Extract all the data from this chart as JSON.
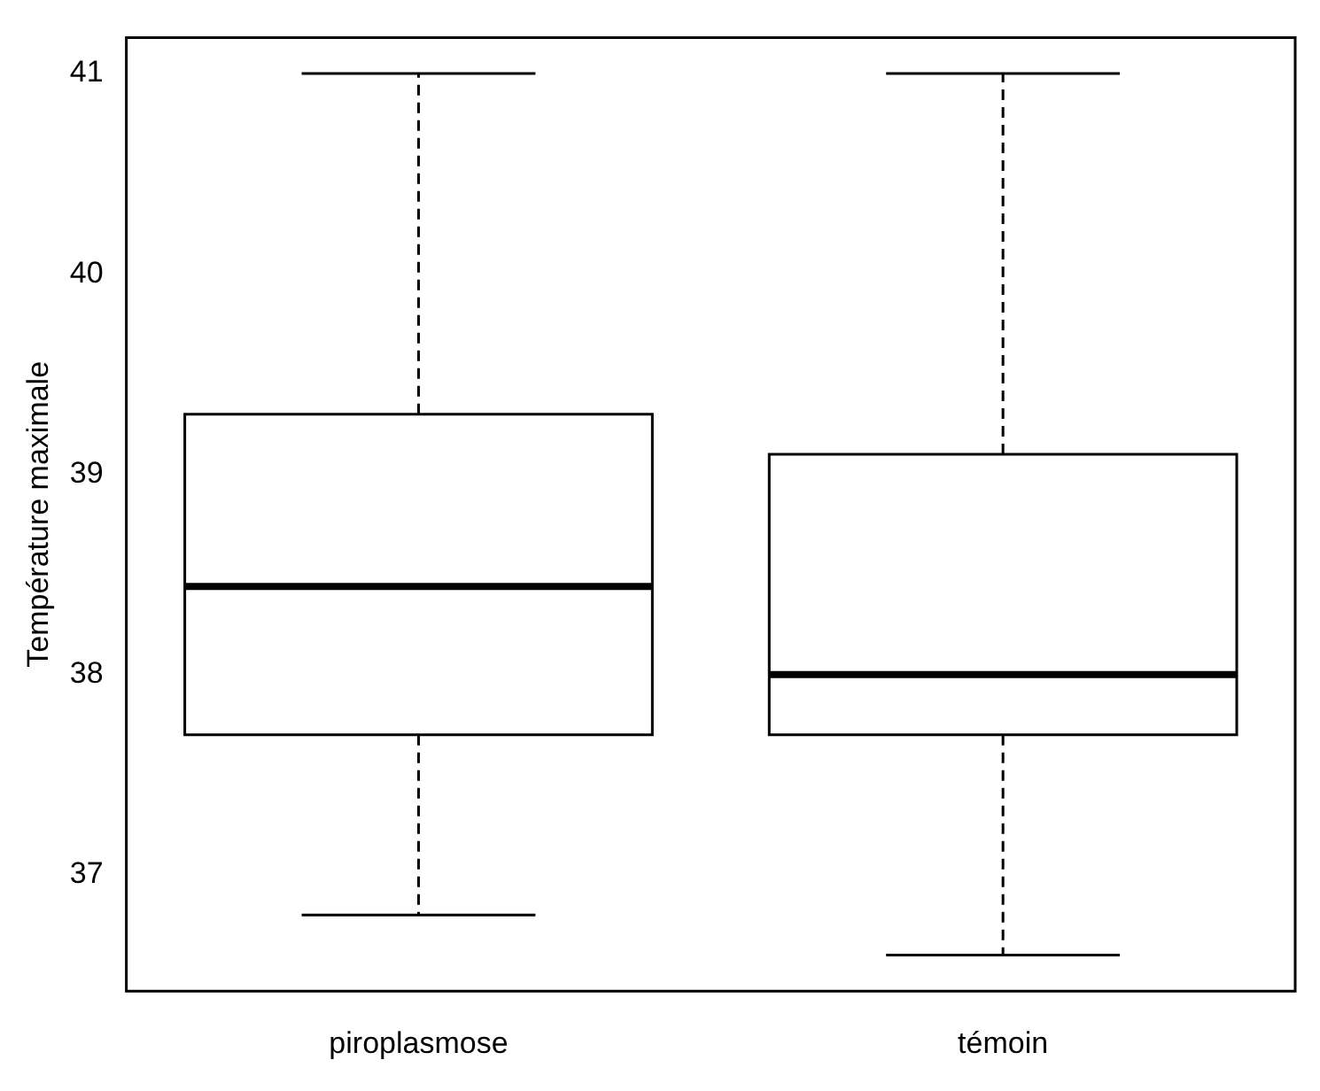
{
  "chart_data": {
    "type": "box",
    "ylabel": "Température maximale",
    "categories": [
      "piroplasmose",
      "témoin"
    ],
    "boxes": [
      {
        "low": 36.8,
        "q1": 37.7,
        "median": 38.44,
        "q3": 39.3,
        "high": 41
      },
      {
        "low": 36.6,
        "q1": 37.7,
        "median": 38.0,
        "q3": 39.1,
        "high": 41
      }
    ],
    "ylim": [
      36.42,
      41.18
    ],
    "yticks": [
      37,
      38,
      39,
      40,
      41
    ],
    "grid": false,
    "legend": false
  }
}
